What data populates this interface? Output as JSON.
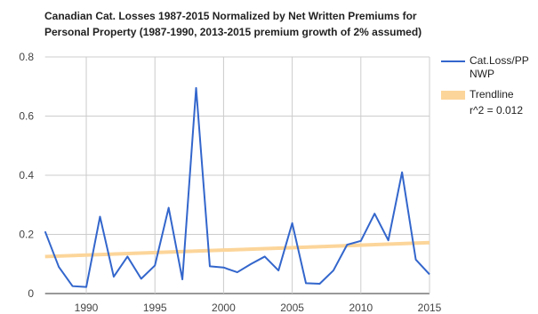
{
  "chart_data": {
    "type": "line",
    "title_lines": [
      "Canadian Cat. Losses 1987-2015 Normalized by Net Written Premiums for",
      "Personal Property (1987-1990, 2013-2015 premium growth of 2% assumed)"
    ],
    "x": [
      1987,
      1988,
      1989,
      1990,
      1991,
      1992,
      1993,
      1994,
      1995,
      1996,
      1997,
      1998,
      1999,
      2000,
      2001,
      2002,
      2003,
      2004,
      2005,
      2006,
      2007,
      2008,
      2009,
      2010,
      2011,
      2012,
      2013,
      2014,
      2015
    ],
    "series": [
      {
        "name": "Cat.Loss/PP NWP",
        "color": "#3366cc",
        "values": [
          0.21,
          0.09,
          0.025,
          0.022,
          0.26,
          0.057,
          0.125,
          0.05,
          0.095,
          0.29,
          0.048,
          0.695,
          0.092,
          0.088,
          0.072,
          0.1,
          0.125,
          0.078,
          0.238,
          0.035,
          0.033,
          0.078,
          0.165,
          0.178,
          0.27,
          0.18,
          0.41,
          0.115,
          0.065
        ]
      }
    ],
    "trendline": {
      "name": "Trendline",
      "r2_label": "r^2 = 0.012",
      "color": "#fcd59a",
      "x": [
        1987,
        2015
      ],
      "values": [
        0.125,
        0.172
      ]
    },
    "xlim": [
      1987,
      2015
    ],
    "xticks": [
      1990,
      1995,
      2000,
      2005,
      2010,
      2015
    ],
    "ylim": [
      0,
      0.8
    ],
    "yticks": [
      0,
      0.2,
      0.4,
      0.6,
      0.8
    ],
    "grid": true,
    "legend": "right"
  }
}
